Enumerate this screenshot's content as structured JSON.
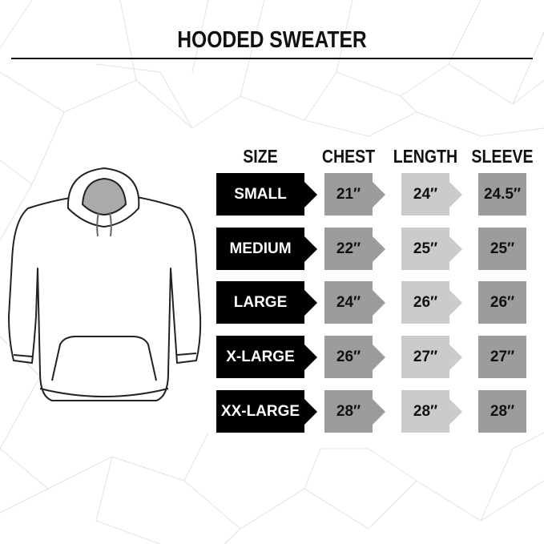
{
  "title": "HOODED SWEATER",
  "headers": {
    "size": "SIZE",
    "chest": "CHEST",
    "length": "LENGTH",
    "sleeve": "SLEEVE"
  },
  "rows": [
    {
      "size": "SMALL",
      "chest": "21″",
      "length": "24″",
      "sleeve": "24.5″"
    },
    {
      "size": "MEDIUM",
      "chest": "22″",
      "length": "25″",
      "sleeve": "25″"
    },
    {
      "size": "LARGE",
      "chest": "24″",
      "length": "26″",
      "sleeve": "26″"
    },
    {
      "size": "X-LARGE",
      "chest": "26″",
      "length": "27″",
      "sleeve": "27″"
    },
    {
      "size": "XX-LARGE",
      "chest": "28″",
      "length": "28″",
      "sleeve": "28″"
    }
  ],
  "colors": {
    "size_box": "#000000",
    "chest_box": "#9c9c9c",
    "length_box": "#cbcbcb",
    "sleeve_box": "#9c9c9c"
  }
}
